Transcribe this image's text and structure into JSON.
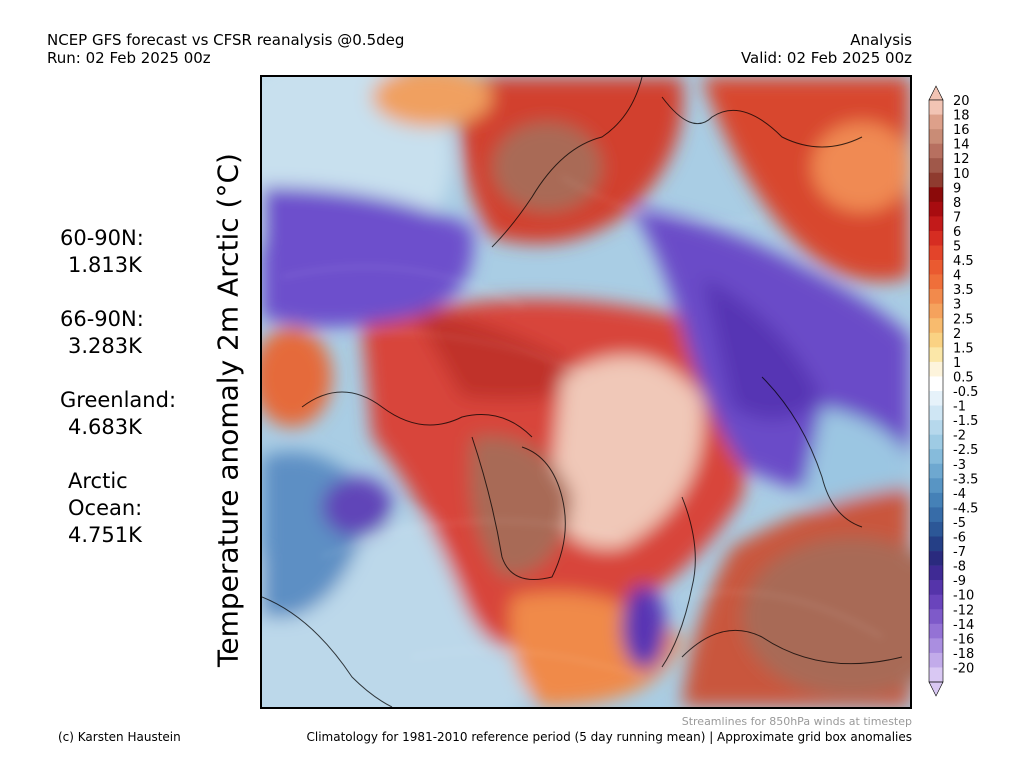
{
  "header": {
    "title": "NCEP GFS forecast vs CFSR reanalysis @0.5deg",
    "run": "Run: 02 Feb 2025 00z",
    "kind": "Analysis",
    "valid": "Valid: 02 Feb 2025 00z"
  },
  "ylabel": "Temperature anomaly 2m Arctic (°C)",
  "stats": [
    {
      "label": "60-90N:",
      "value": "1.813K"
    },
    {
      "label": "66-90N:",
      "value": "3.283K"
    },
    {
      "label": "Greenland:",
      "value": "4.683K"
    },
    {
      "label": "Arctic Ocean:",
      "value": "4.751K"
    }
  ],
  "footer": {
    "credit": "(c) Karsten Haustein",
    "note": "Streamlines for 850hPa winds at timestep",
    "climatology": "Climatology for 1981-2010 reference period (5 day running mean) | Approximate grid box anomalies"
  },
  "colorbar": {
    "labels": [
      "20",
      "18",
      "16",
      "14",
      "12",
      "10",
      "9",
      "8",
      "7",
      "6",
      "5",
      "4.5",
      "4",
      "3.5",
      "3",
      "2.5",
      "2",
      "1.5",
      "1",
      "0.5",
      "-0.5",
      "-1",
      "-1.5",
      "-2",
      "-2.5",
      "-3",
      "-3.5",
      "-4",
      "-4.5",
      "-5",
      "-6",
      "-7",
      "-8",
      "-9",
      "-10",
      "-12",
      "-14",
      "-16",
      "-18",
      "-20"
    ],
    "colors": [
      "#f2c4b4",
      "#dda08a",
      "#c98c76",
      "#b77060",
      "#a0584a",
      "#8f3b2f",
      "#8b0a0a",
      "#a80c10",
      "#c21a1a",
      "#d62d22",
      "#e3442a",
      "#ea5a30",
      "#ef6f3a",
      "#f28a4c",
      "#f5a25d",
      "#f8bb6e",
      "#fad283",
      "#fbe7a8",
      "#fdf4dc",
      "#ffffff",
      "#e6f2fa",
      "#cfe6f4",
      "#b6d8ec",
      "#9ecbe4",
      "#86bbdb",
      "#6ea8d0",
      "#5895c4",
      "#4581b7",
      "#376ca8",
      "#2c5797",
      "#253f86",
      "#2a2a7e",
      "#3f2a94",
      "#5534aa",
      "#6a44bc",
      "#7e5ac9",
      "#9472d5",
      "#aa8ee0",
      "#c2abea",
      "#d9c8f3"
    ]
  },
  "map_layers": [
    {
      "name": "cold-west-alaska",
      "color": "#7b5ad4"
    },
    {
      "name": "warm-central-arctic",
      "color": "#d8443a"
    },
    {
      "name": "very-warm-greenland",
      "color": "#b07060"
    },
    {
      "name": "cold-siberia",
      "color": "#6a4bc6"
    },
    {
      "name": "warm-europe-russia",
      "color": "#a86a58"
    }
  ]
}
